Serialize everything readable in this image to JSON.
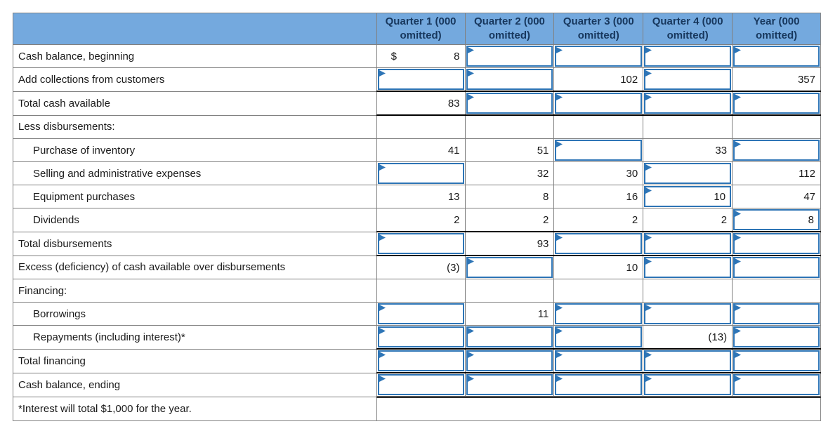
{
  "colors": {
    "header_bg": "#74A9DE",
    "header_text": "#17375D",
    "grid": "#808080",
    "rule": "#000000",
    "input_border": "#2E75B6",
    "flag": "#2E75B6"
  },
  "header": {
    "corner": "",
    "columns": [
      "Quarter 1 (000 omitted)",
      "Quarter 2 (000 omitted)",
      "Quarter 3 (000 omitted)",
      "Quarter 4 (000 omitted)",
      "Year (000 omitted)"
    ]
  },
  "rows": [
    {
      "label": "Cash balance, beginning",
      "indent": false,
      "cells": [
        {
          "type": "static",
          "prefix": "$",
          "value": "8"
        },
        {
          "type": "input",
          "value": ""
        },
        {
          "type": "input",
          "value": ""
        },
        {
          "type": "input",
          "value": ""
        },
        {
          "type": "input",
          "value": ""
        }
      ]
    },
    {
      "label": "Add collections from customers",
      "indent": false,
      "cells": [
        {
          "type": "input",
          "value": ""
        },
        {
          "type": "input",
          "value": ""
        },
        {
          "type": "static",
          "value": "102"
        },
        {
          "type": "input",
          "value": ""
        },
        {
          "type": "static",
          "value": "357"
        }
      ]
    },
    {
      "label": "Total cash available",
      "indent": false,
      "rule_top": true,
      "rule_bottom": true,
      "cells": [
        {
          "type": "static",
          "value": "83"
        },
        {
          "type": "input",
          "value": ""
        },
        {
          "type": "input",
          "value": ""
        },
        {
          "type": "input",
          "value": ""
        },
        {
          "type": "input",
          "value": ""
        }
      ]
    },
    {
      "label": "Less disbursements:",
      "indent": false,
      "cells": [
        {
          "type": "blank"
        },
        {
          "type": "blank"
        },
        {
          "type": "blank"
        },
        {
          "type": "blank"
        },
        {
          "type": "blank"
        }
      ]
    },
    {
      "label": "Purchase of inventory",
      "indent": true,
      "cells": [
        {
          "type": "static",
          "value": "41"
        },
        {
          "type": "static",
          "value": "51"
        },
        {
          "type": "input",
          "value": ""
        },
        {
          "type": "static",
          "value": "33"
        },
        {
          "type": "input",
          "value": ""
        }
      ]
    },
    {
      "label": "Selling and administrative expenses",
      "indent": true,
      "cells": [
        {
          "type": "input",
          "value": ""
        },
        {
          "type": "static",
          "value": "32"
        },
        {
          "type": "static",
          "value": "30"
        },
        {
          "type": "input",
          "value": ""
        },
        {
          "type": "static",
          "value": "112"
        }
      ]
    },
    {
      "label": "Equipment purchases",
      "indent": true,
      "cells": [
        {
          "type": "static",
          "value": "13"
        },
        {
          "type": "static",
          "value": "8"
        },
        {
          "type": "static",
          "value": "16"
        },
        {
          "type": "input",
          "value": "10"
        },
        {
          "type": "static",
          "value": "47"
        }
      ]
    },
    {
      "label": "Dividends",
      "indent": true,
      "cells": [
        {
          "type": "static",
          "value": "2"
        },
        {
          "type": "static",
          "value": "2"
        },
        {
          "type": "static",
          "value": "2"
        },
        {
          "type": "static",
          "value": "2"
        },
        {
          "type": "input",
          "value": "8"
        }
      ]
    },
    {
      "label": "Total disbursements",
      "indent": false,
      "rule_top": true,
      "rule_bottom": true,
      "cells": [
        {
          "type": "input",
          "value": ""
        },
        {
          "type": "static",
          "value": "93"
        },
        {
          "type": "input",
          "value": ""
        },
        {
          "type": "input",
          "value": ""
        },
        {
          "type": "input",
          "value": ""
        }
      ]
    },
    {
      "label": "Excess (deficiency) of cash available over disbursements",
      "indent": false,
      "cells": [
        {
          "type": "static",
          "value": "(3)"
        },
        {
          "type": "input",
          "value": ""
        },
        {
          "type": "static",
          "value": "10"
        },
        {
          "type": "input",
          "value": ""
        },
        {
          "type": "input",
          "value": ""
        }
      ]
    },
    {
      "label": "Financing:",
      "indent": false,
      "cells": [
        {
          "type": "blank"
        },
        {
          "type": "blank"
        },
        {
          "type": "blank"
        },
        {
          "type": "blank"
        },
        {
          "type": "blank"
        }
      ]
    },
    {
      "label": "Borrowings",
      "indent": true,
      "cells": [
        {
          "type": "input",
          "value": ""
        },
        {
          "type": "static",
          "value": "11"
        },
        {
          "type": "input",
          "value": ""
        },
        {
          "type": "input",
          "value": ""
        },
        {
          "type": "input",
          "value": ""
        }
      ]
    },
    {
      "label": "Repayments (including interest)*",
      "indent": true,
      "cells": [
        {
          "type": "input",
          "value": ""
        },
        {
          "type": "input",
          "value": ""
        },
        {
          "type": "input",
          "value": ""
        },
        {
          "type": "static",
          "value": "(13)"
        },
        {
          "type": "input",
          "value": ""
        }
      ]
    },
    {
      "label": "Total financing",
      "indent": false,
      "rule_top": true,
      "rule_bottom": true,
      "cells": [
        {
          "type": "input",
          "value": ""
        },
        {
          "type": "input",
          "value": ""
        },
        {
          "type": "input",
          "value": ""
        },
        {
          "type": "input",
          "value": ""
        },
        {
          "type": "input",
          "value": ""
        }
      ]
    },
    {
      "label": "Cash balance, ending",
      "indent": false,
      "double_bottom": true,
      "cells": [
        {
          "type": "input",
          "value": ""
        },
        {
          "type": "input",
          "value": ""
        },
        {
          "type": "input",
          "value": ""
        },
        {
          "type": "input",
          "value": ""
        },
        {
          "type": "input",
          "value": ""
        }
      ]
    }
  ],
  "footnote": {
    "label": "*Interest will total $1,000 for the year."
  }
}
